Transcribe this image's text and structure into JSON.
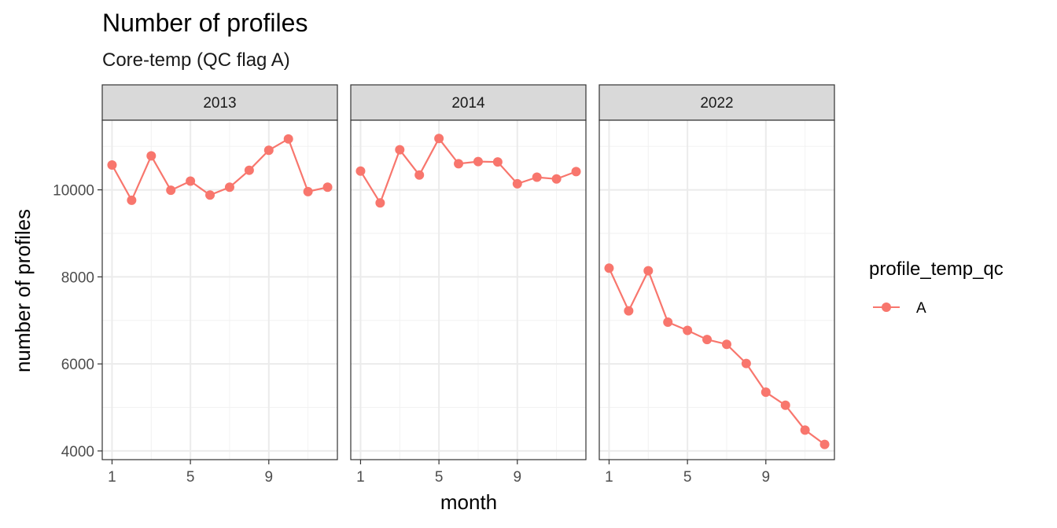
{
  "chart_data": {
    "type": "line",
    "title": "Number of profiles",
    "subtitle": "Core-temp (QC flag A)",
    "xlabel": "month",
    "ylabel": "number of profiles",
    "x_ticks": [
      1,
      5,
      9
    ],
    "y_ticks": [
      4000,
      6000,
      8000,
      10000
    ],
    "xlim": [
      0.5,
      12.5
    ],
    "ylim": [
      3800,
      11600
    ],
    "grid": true,
    "legend": {
      "title": "profile_temp_qc",
      "position": "right",
      "entries": [
        "A"
      ]
    },
    "series_color": "#F8766D",
    "x": [
      1,
      2,
      3,
      4,
      5,
      6,
      7,
      8,
      9,
      10,
      11,
      12
    ],
    "panels": [
      {
        "label": "2013",
        "series": [
          {
            "name": "A",
            "values": [
              10570,
              9760,
              10780,
              9990,
              10200,
              9880,
              10060,
              10450,
              10910,
              11170,
              9960,
              10060
            ]
          }
        ]
      },
      {
        "label": "2014",
        "series": [
          {
            "name": "A",
            "values": [
              10430,
              9700,
              10920,
              10340,
              11180,
              10600,
              10650,
              10640,
              10140,
              10290,
              10250,
              10420
            ]
          }
        ]
      },
      {
        "label": "2022",
        "series": [
          {
            "name": "A",
            "values": [
              8200,
              7220,
              8140,
              6960,
              6770,
              6560,
              6450,
              6010,
              5350,
              5050,
              4480,
              4150
            ]
          }
        ]
      }
    ]
  }
}
